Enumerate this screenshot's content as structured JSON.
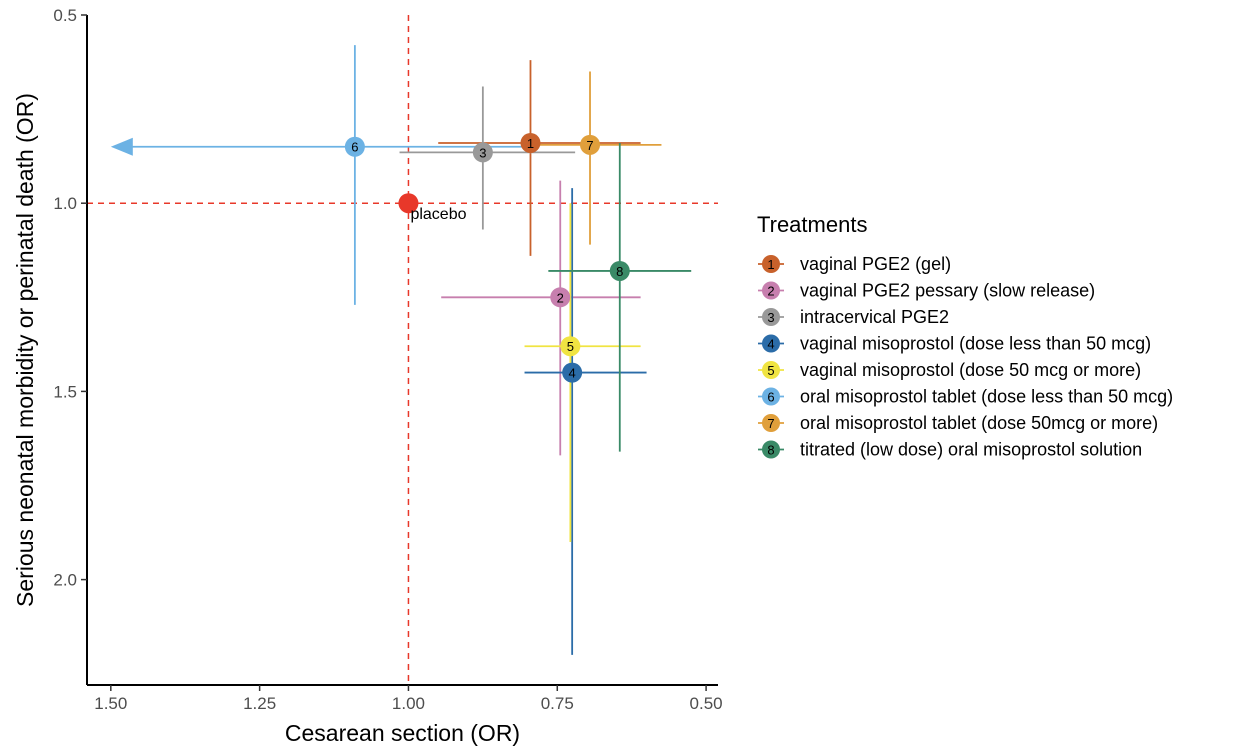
{
  "chart_data": {
    "type": "scatter",
    "xlabel": "Cesarean section (OR)",
    "ylabel": "Serious neonatal morbidity or perinatal death (OR)",
    "x_reversed": true,
    "y_reversed": true,
    "xlim": [
      1.54,
      0.48
    ],
    "ylim": [
      0.5,
      2.28
    ],
    "x_ticks": [
      1.5,
      1.25,
      1.0,
      0.75,
      0.5
    ],
    "x_tick_labels": [
      "1.50",
      "1.25",
      "1.00",
      "0.75",
      "0.50"
    ],
    "y_ticks": [
      0.5,
      1.0,
      1.5,
      2.0
    ],
    "y_tick_labels": [
      "0.5",
      "1.0",
      "1.5",
      "2.0"
    ],
    "grid": false,
    "legend_title": "Treatments",
    "legend_position": "right",
    "reference": {
      "label": "placebo",
      "x": 1.0,
      "y": 1.0,
      "color": "#e8382a",
      "line_color": "#e8382a"
    },
    "treatments": [
      {
        "id": "1",
        "name": "vaginal PGE2 (gel)",
        "color": "#c8612b",
        "x": 0.795,
        "x_low": 0.95,
        "x_high": 0.61,
        "y": 0.84,
        "y_low": 0.62,
        "y_high": 1.14
      },
      {
        "id": "2",
        "name": "vaginal PGE2 pessary (slow release)",
        "color": "#c77fae",
        "x": 0.745,
        "x_low": 0.945,
        "x_high": 0.61,
        "y": 1.25,
        "y_low": 0.94,
        "y_high": 1.67
      },
      {
        "id": "3",
        "name": "intracervical PGE2",
        "color": "#999999",
        "x": 0.875,
        "x_low": 1.015,
        "x_high": 0.72,
        "y": 0.865,
        "y_low": 0.69,
        "y_high": 1.07
      },
      {
        "id": "4",
        "name": "vaginal misoprostol (dose less than 50 mcg)",
        "color": "#2b6ca8",
        "x": 0.725,
        "x_low": 0.805,
        "x_high": 0.6,
        "y": 1.45,
        "y_low": 0.96,
        "y_high": 2.2
      },
      {
        "id": "5",
        "name": "vaginal misoprostol (dose 50 mcg or more)",
        "color": "#f0e442",
        "x": 0.728,
        "x_low": 0.805,
        "x_high": 0.61,
        "y": 1.38,
        "y_low": 1.0,
        "y_high": 1.9
      },
      {
        "id": "6",
        "name": "oral misoprostol tablet (dose less than 50 mcg)",
        "color": "#6cb2e4",
        "x": 1.09,
        "x_low": 1.5,
        "x_high": 0.8,
        "y": 0.85,
        "y_low": 0.58,
        "y_high": 1.27,
        "x_low_arrow": true
      },
      {
        "id": "7",
        "name": "oral misoprostol tablet (dose 50mcg or more)",
        "color": "#e09f3b",
        "x": 0.695,
        "x_low": 0.795,
        "x_high": 0.575,
        "y": 0.845,
        "y_low": 0.65,
        "y_high": 1.11
      },
      {
        "id": "8",
        "name": "titrated (low dose) oral misoprostol solution",
        "color": "#3a8a67",
        "x": 0.645,
        "x_low": 0.765,
        "x_high": 0.525,
        "y": 1.18,
        "y_low": 0.84,
        "y_high": 1.66
      }
    ]
  }
}
